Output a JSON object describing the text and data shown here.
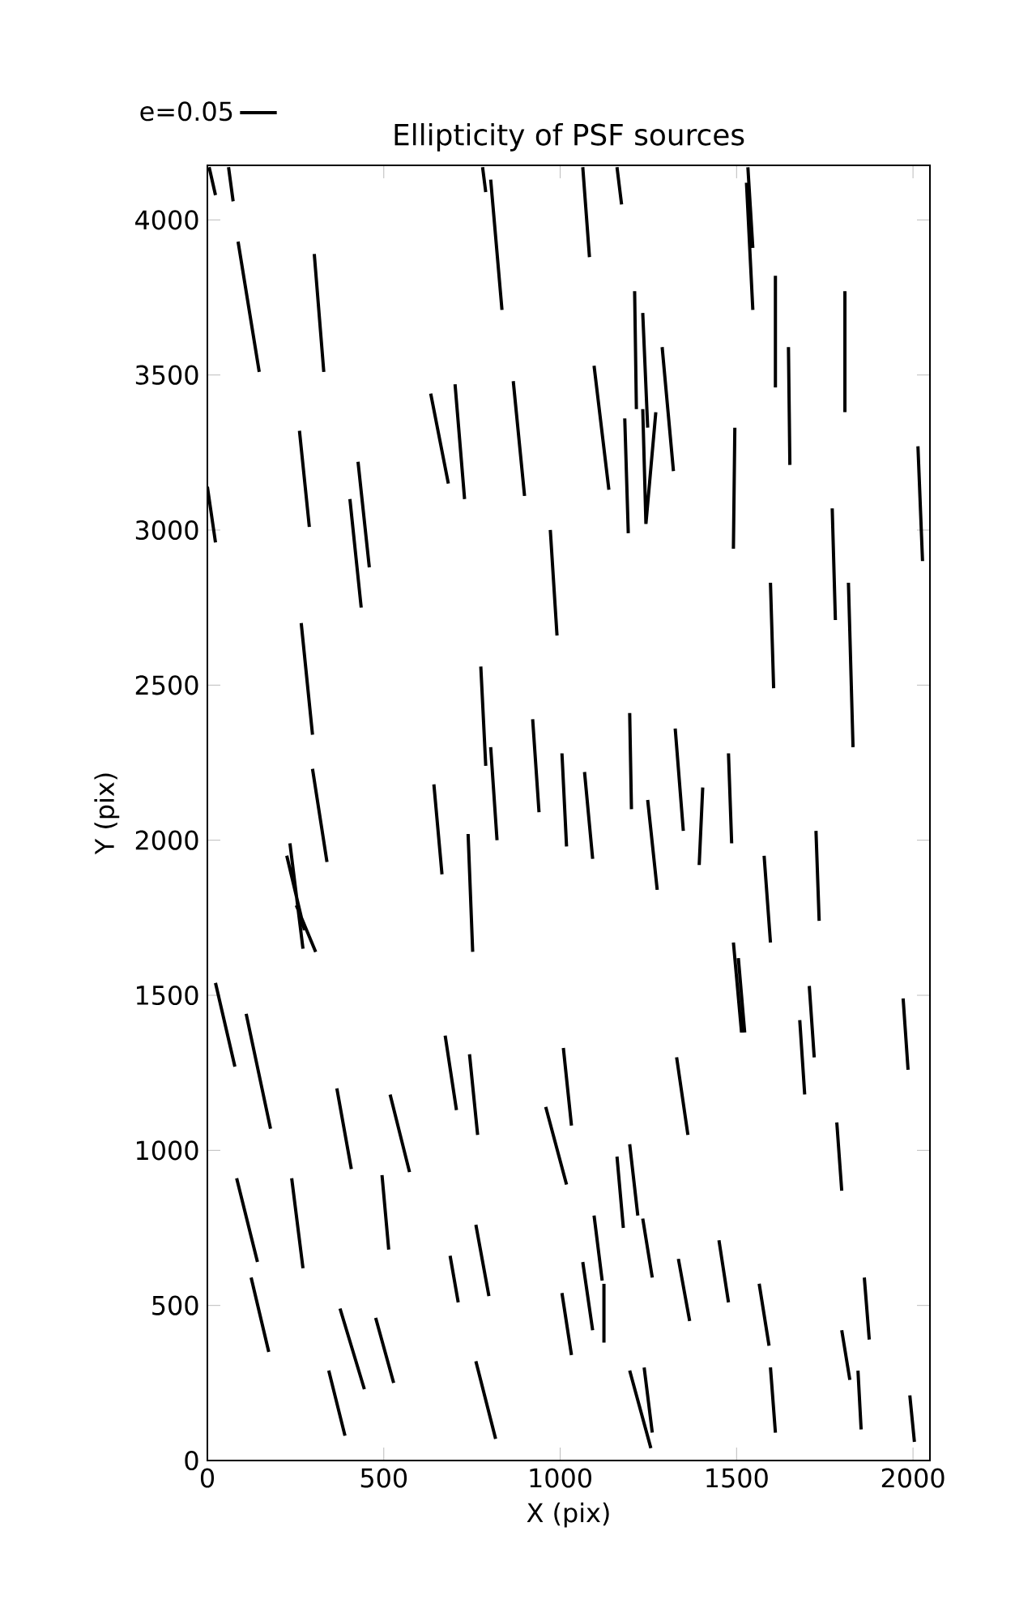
{
  "chart_data": {
    "type": "line",
    "title": "Ellipticity of PSF sources",
    "xlabel": "X (pix)",
    "ylabel": "Y (pix)",
    "xlim": [
      0,
      2048
    ],
    "ylim": [
      0,
      4176
    ],
    "xticks": [
      0,
      500,
      1000,
      1500,
      2000
    ],
    "yticks": [
      0,
      500,
      1000,
      1500,
      2000,
      2500,
      3000,
      3500,
      4000
    ],
    "legend": "top left",
    "series": [
      {
        "name": "e=0.05",
        "color": "#000000",
        "x": [
          5,
          23,
          null,
          60,
          73,
          null,
          87,
          147,
          null,
          303,
          330,
          null,
          0,
          23,
          null,
          261,
          289,
          null,
          404,
          436,
          null,
          427,
          459,
          null,
          266,
          298,
          null,
          298,
          339,
          null,
          234,
          271,
          null,
          225,
          275,
          null,
          252,
          307,
          null,
          642,
          665,
          null,
          739,
          752,
          null,
          775,
          789,
          null,
          803,
          821,
          null,
          922,
          940,
          null,
          1005,
          1018,
          null,
          972,
          991,
          null,
          23,
          78,
          null,
          110,
          179,
          null,
          633,
          683,
          null,
          702,
          729,
          null,
          867,
          899,
          null,
          780,
          789,
          null,
          803,
          835,
          null,
          1064,
          1083,
          null,
          1161,
          1174,
          null,
          1532,
          1546,
          null,
          1528,
          1546,
          null,
          1211,
          1216,
          null,
          1234,
          1248,
          null,
          1289,
          1321,
          null,
          1096,
          1138,
          null,
          1183,
          1193,
          null,
          1234,
          1243,
          null,
          1271,
          1243,
          null,
          1610,
          1610,
          null,
          1647,
          1651,
          null,
          1807,
          1807,
          null,
          1495,
          1491,
          null,
          1771,
          1780,
          null,
          1817,
          1830,
          null,
          2014,
          2027,
          null,
          1596,
          1605,
          null,
          1069,
          1092,
          null,
          1197,
          1202,
          null,
          1248,
          1275,
          null,
          1326,
          1349,
          null,
          1404,
          1394,
          null,
          1477,
          1486,
          null,
          1578,
          1596,
          null,
          1725,
          1734,
          null,
          1491,
          1514,
          null,
          1505,
          1523,
          null,
          1706,
          1720,
          null,
          1679,
          1693,
          null,
          1972,
          1986,
          null,
          367,
          408,
          null,
          518,
          573,
          null,
          674,
          706,
          null,
          743,
          766,
          null,
          1009,
          1032,
          null,
          959,
          1018,
          null,
          1330,
          1362,
          null,
          1784,
          1798,
          null,
          1161,
          1179,
          null,
          1197,
          1220,
          null,
          83,
          142,
          null,
          239,
          271,
          null,
          495,
          514,
          null,
          688,
          711,
          null,
          761,
          798,
          null,
          1096,
          1119,
          null,
          1234,
          1261,
          null,
          1335,
          1367,
          null,
          1450,
          1477,
          null,
          1564,
          1592,
          null,
          1862,
          1876,
          null,
          1005,
          1032,
          null,
          1064,
          1092,
          null,
          1124,
          1124,
          null,
          124,
          174,
          null,
          376,
          445,
          null,
          477,
          528,
          null,
          344,
          390,
          null,
          761,
          817,
          null,
          1197,
          1257,
          null,
          1238,
          1261,
          null,
          1596,
          1610,
          null,
          1798,
          1821,
          null,
          1844,
          1853,
          null,
          1991,
          2004
        ],
        "values": [
          4170,
          4080,
          null,
          4170,
          4060,
          null,
          3930,
          3510,
          null,
          3890,
          3510,
          null,
          3140,
          2960,
          null,
          3320,
          3010,
          null,
          3100,
          2750,
          null,
          3220,
          2880,
          null,
          2700,
          2340,
          null,
          2230,
          1930,
          null,
          1990,
          1650,
          null,
          1950,
          1710,
          null,
          1790,
          1640,
          null,
          2180,
          1890,
          null,
          2020,
          1640,
          null,
          2560,
          2240,
          null,
          2300,
          2000,
          null,
          2390,
          2090,
          null,
          2280,
          1980,
          null,
          3000,
          2660,
          null,
          1540,
          1270,
          null,
          1440,
          1070,
          null,
          3440,
          3150,
          null,
          3470,
          3100,
          null,
          3480,
          3110,
          null,
          4170,
          4090,
          null,
          4130,
          3710,
          null,
          4170,
          3880,
          null,
          4170,
          4050,
          null,
          4170,
          3910,
          null,
          4120,
          3710,
          null,
          3770,
          3390,
          null,
          3700,
          3330,
          null,
          3590,
          3190,
          null,
          3530,
          3130,
          null,
          3360,
          2990,
          null,
          3390,
          3020,
          null,
          3380,
          3020,
          null,
          3820,
          3460,
          null,
          3590,
          3210,
          null,
          3770,
          3380,
          null,
          3330,
          2940,
          null,
          3070,
          2710,
          null,
          2830,
          2300,
          null,
          3270,
          2900,
          null,
          2830,
          2490,
          null,
          2220,
          1940,
          null,
          2410,
          2100,
          null,
          2130,
          1840,
          null,
          2360,
          2030,
          null,
          2170,
          1920,
          null,
          2280,
          1990,
          null,
          1950,
          1670,
          null,
          2030,
          1740,
          null,
          1670,
          1380,
          null,
          1620,
          1380,
          null,
          1530,
          1300,
          null,
          1420,
          1180,
          null,
          1490,
          1260,
          null,
          1200,
          940,
          null,
          1180,
          930,
          null,
          1370,
          1130,
          null,
          1310,
          1050,
          null,
          1330,
          1080,
          null,
          1140,
          890,
          null,
          1300,
          1050,
          null,
          1090,
          870,
          null,
          980,
          750,
          null,
          1020,
          790,
          null,
          910,
          640,
          null,
          910,
          620,
          null,
          920,
          680,
          null,
          660,
          510,
          null,
          760,
          530,
          null,
          790,
          580,
          null,
          780,
          590,
          null,
          650,
          450,
          null,
          710,
          510,
          null,
          570,
          370,
          null,
          590,
          390,
          null,
          540,
          340,
          null,
          640,
          420,
          null,
          570,
          380,
          null,
          590,
          350,
          null,
          490,
          230,
          null,
          460,
          250,
          null,
          290,
          80,
          null,
          320,
          70,
          null,
          290,
          40,
          null,
          300,
          90,
          null,
          300,
          90,
          null,
          420,
          260,
          null,
          290,
          100,
          null,
          210,
          60
        ]
      }
    ]
  }
}
